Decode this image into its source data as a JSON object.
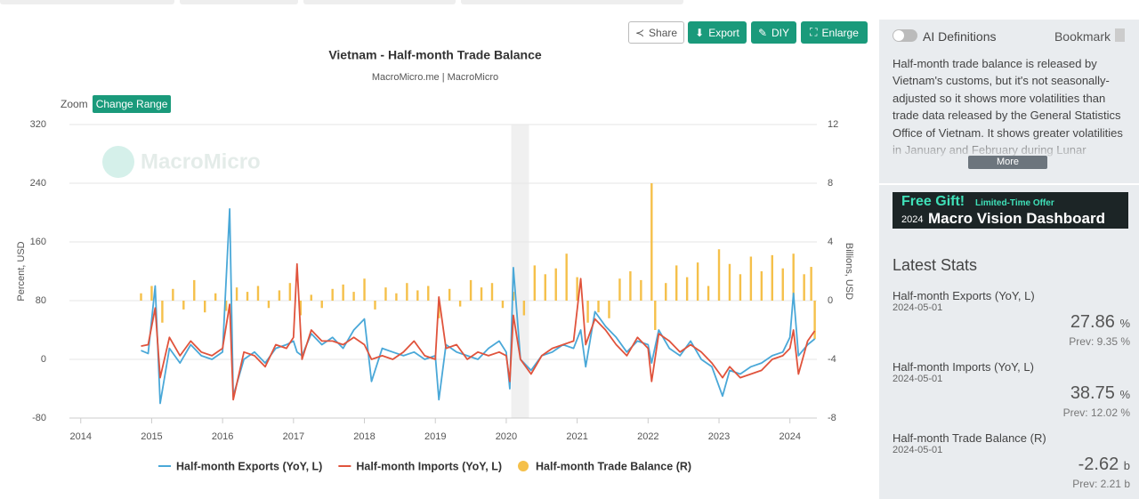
{
  "buttons": {
    "share": "Share",
    "export": "Export",
    "diy": "DIY",
    "enlarge": "Enlarge"
  },
  "zoom": {
    "label": "Zoom",
    "button": "Change Range"
  },
  "chart_data": {
    "type": "line",
    "title": "Vietnam - Half-month Trade Balance",
    "subtitle": "MacroMicro.me | MacroMicro",
    "watermark": "MacroMicro",
    "y_label": "Percent, USD",
    "y2_label": "Billions, USD",
    "xlim": [
      2013.84,
      2024.38
    ],
    "xticks": [
      2014,
      2015,
      2016,
      2017,
      2018,
      2019,
      2020,
      2021,
      2022,
      2023,
      2024
    ],
    "ylim": [
      -80,
      320
    ],
    "yticks": [
      -80,
      0,
      80,
      160,
      240,
      320
    ],
    "y2lim": [
      -8,
      12
    ],
    "y2ticks": [
      -8,
      -4,
      0,
      4,
      8,
      12
    ],
    "grid": true,
    "shaded_range": [
      2020.07,
      2020.32
    ],
    "x": [
      2014.85,
      2014.95,
      2015.05,
      2015.12,
      2015.25,
      2015.4,
      2015.55,
      2015.7,
      2015.85,
      2016.0,
      2016.1,
      2016.15,
      2016.3,
      2016.45,
      2016.6,
      2016.75,
      2016.9,
      2017.0,
      2017.05,
      2017.12,
      2017.25,
      2017.4,
      2017.55,
      2017.7,
      2017.85,
      2018.0,
      2018.1,
      2018.25,
      2018.4,
      2018.55,
      2018.7,
      2018.85,
      2019.0,
      2019.05,
      2019.15,
      2019.3,
      2019.45,
      2019.6,
      2019.75,
      2019.9,
      2020.0,
      2020.05,
      2020.1,
      2020.2,
      2020.35,
      2020.5,
      2020.65,
      2020.8,
      2020.95,
      2021.05,
      2021.12,
      2021.25,
      2021.4,
      2021.55,
      2021.7,
      2021.85,
      2022.0,
      2022.05,
      2022.15,
      2022.3,
      2022.45,
      2022.6,
      2022.75,
      2022.9,
      2023.05,
      2023.15,
      2023.3,
      2023.45,
      2023.6,
      2023.75,
      2023.9,
      2024.0,
      2024.05,
      2024.12,
      2024.25,
      2024.35
    ],
    "series": [
      {
        "name": "Half-month Exports (YoY, L)",
        "color": "#4aa8d8",
        "kind": "line",
        "values": [
          12,
          8,
          100,
          -60,
          15,
          -5,
          20,
          5,
          0,
          10,
          205,
          -50,
          0,
          10,
          -5,
          15,
          20,
          25,
          10,
          5,
          35,
          20,
          30,
          15,
          40,
          55,
          -30,
          15,
          10,
          5,
          10,
          0,
          5,
          -55,
          20,
          10,
          5,
          0,
          15,
          25,
          10,
          -40,
          125,
          0,
          -15,
          5,
          10,
          20,
          15,
          40,
          -10,
          65,
          45,
          30,
          10,
          25,
          20,
          -5,
          40,
          15,
          5,
          25,
          0,
          -10,
          -50,
          -15,
          -20,
          -10,
          -5,
          5,
          10,
          30,
          90,
          5,
          20,
          27.86
        ]
      },
      {
        "name": "Half-month Imports (YoY, L)",
        "color": "#e0533c",
        "kind": "line",
        "values": [
          18,
          20,
          70,
          -25,
          30,
          5,
          25,
          10,
          5,
          15,
          75,
          -55,
          10,
          5,
          -10,
          20,
          15,
          30,
          130,
          0,
          40,
          25,
          25,
          20,
          30,
          20,
          0,
          5,
          0,
          10,
          25,
          5,
          0,
          85,
          15,
          20,
          0,
          10,
          5,
          10,
          5,
          -30,
          60,
          0,
          -20,
          5,
          15,
          20,
          25,
          110,
          20,
          55,
          40,
          20,
          5,
          30,
          15,
          -30,
          35,
          25,
          10,
          20,
          10,
          -5,
          -25,
          -10,
          -25,
          -20,
          -15,
          0,
          5,
          15,
          40,
          -20,
          25,
          38.75
        ]
      },
      {
        "name": "Half-month Trade Balance (R)",
        "color": "#f5c04a",
        "kind": "bar",
        "axis": "y2",
        "x": [
          2014.85,
          2015.0,
          2015.15,
          2015.3,
          2015.45,
          2015.6,
          2015.75,
          2015.9,
          2016.05,
          2016.2,
          2016.35,
          2016.5,
          2016.65,
          2016.8,
          2016.95,
          2017.1,
          2017.25,
          2017.4,
          2017.55,
          2017.7,
          2017.85,
          2018.0,
          2018.15,
          2018.3,
          2018.45,
          2018.6,
          2018.75,
          2018.9,
          2019.05,
          2019.2,
          2019.35,
          2019.5,
          2019.65,
          2019.8,
          2019.95,
          2020.1,
          2020.25,
          2020.4,
          2020.55,
          2020.7,
          2020.85,
          2021.0,
          2021.15,
          2021.3,
          2021.45,
          2021.6,
          2021.75,
          2021.9,
          2022.05,
          2022.1,
          2022.25,
          2022.4,
          2022.55,
          2022.7,
          2022.85,
          2023.0,
          2023.15,
          2023.3,
          2023.45,
          2023.6,
          2023.75,
          2023.9,
          2024.05,
          2024.2,
          2024.3,
          2024.35
        ],
        "values": [
          0.5,
          1.0,
          -1.5,
          0.8,
          -0.6,
          1.4,
          -0.8,
          0.5,
          -0.7,
          0.9,
          0.6,
          1.0,
          -0.5,
          0.7,
          1.2,
          -1.0,
          0.4,
          -0.5,
          0.8,
          1.1,
          0.6,
          1.5,
          -0.6,
          0.9,
          0.5,
          1.2,
          0.7,
          1.0,
          -1.2,
          0.8,
          -0.4,
          1.4,
          0.9,
          1.2,
          -0.5,
          0.6,
          -1.0,
          2.4,
          1.8,
          2.2,
          3.2,
          1.6,
          -1.5,
          -0.8,
          -1.2,
          1.5,
          2.0,
          1.4,
          8.0,
          -2.0,
          1.2,
          2.4,
          1.6,
          2.6,
          1.0,
          3.5,
          2.5,
          1.8,
          3.0,
          2.0,
          3.1,
          2.2,
          3.2,
          1.8,
          2.3,
          -2.62
        ]
      }
    ]
  },
  "panel": {
    "toggle": "AI Definitions",
    "bookmark": "Bookmark",
    "description": "Half-month trade balance is released by Vietnam's customs, but it's not seasonally-adjusted so it shows more volatilities than trade data released by the General Statistics Office of Vietnam. It shows greater volatilities in January and February during Lunar",
    "more": "More",
    "banner": {
      "gift": "Free Gift!",
      "offer": "Limited-Time Offer",
      "year": "2024",
      "name": "Macro Vision Dashboard"
    },
    "stats_title": "Latest Stats",
    "stats": [
      {
        "name": "Half-month Exports (YoY, L)",
        "date": "2024-05-01",
        "value": "27.86",
        "unit": "%",
        "prev": "Prev: 9.35 %"
      },
      {
        "name": "Half-month Imports (YoY, L)",
        "date": "2024-05-01",
        "value": "38.75",
        "unit": "%",
        "prev": "Prev: 12.02 %"
      },
      {
        "name": "Half-month Trade Balance (R)",
        "date": "2024-05-01",
        "value": "-2.62",
        "unit": "b",
        "prev": "Prev: 2.21 b"
      }
    ]
  }
}
